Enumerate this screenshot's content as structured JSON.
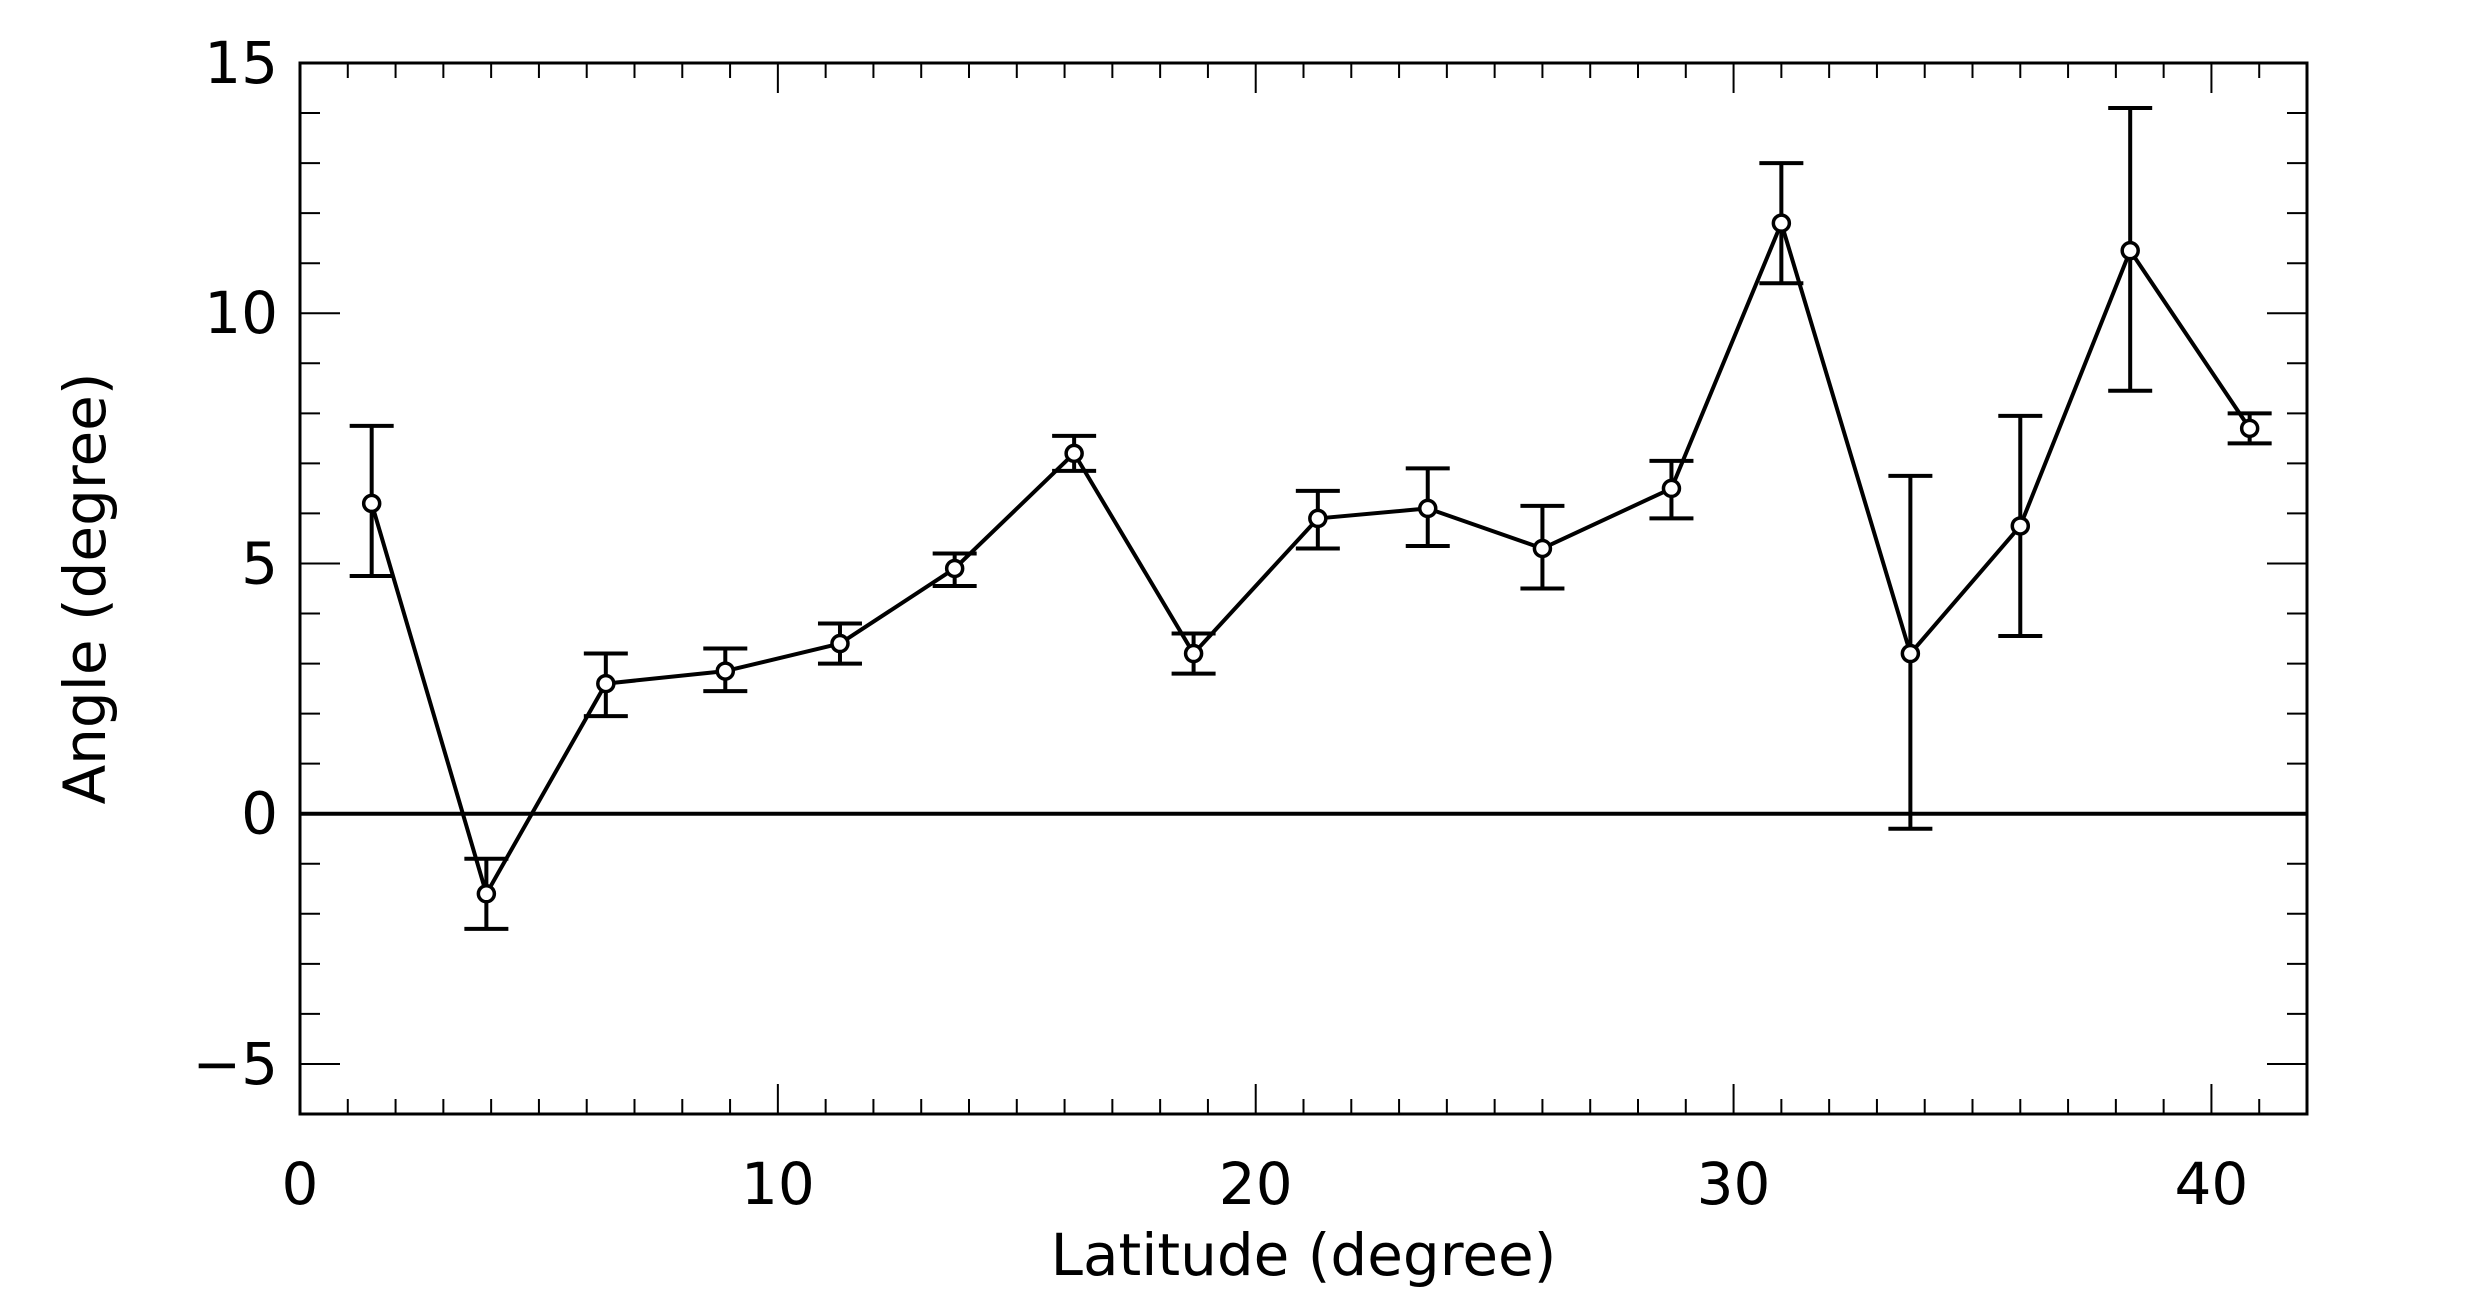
{
  "chart_data": {
    "type": "line",
    "xlabel": "Latitude (degree)",
    "ylabel": "Angle (degree)",
    "xlim": [
      0,
      42
    ],
    "ylim": [
      -6,
      15
    ],
    "x_ticks": [
      0,
      10,
      20,
      30,
      40
    ],
    "x_tick_labels": [
      "0",
      "10",
      "20",
      "30",
      "40"
    ],
    "y_ticks": [
      -5,
      0,
      5,
      10,
      15
    ],
    "y_tick_labels": [
      "−5",
      "0",
      "5",
      "10",
      "15"
    ],
    "x_minor_step": 1,
    "y_minor_step": 1,
    "zero_line": 0,
    "grid": false,
    "series": [
      {
        "marker": "open-circle",
        "color": "#000000",
        "x": [
          1.5,
          3.9,
          6.4,
          8.9,
          11.3,
          13.7,
          16.2,
          18.7,
          21.3,
          23.6,
          26.0,
          28.7,
          31.0,
          33.7,
          36.0,
          38.3,
          40.8
        ],
        "y": [
          6.2,
          -1.6,
          2.6,
          2.85,
          3.4,
          4.9,
          7.2,
          3.2,
          5.9,
          6.1,
          5.3,
          6.5,
          11.8,
          3.2,
          5.75,
          11.25,
          7.7
        ],
        "yerr_low": [
          4.75,
          -2.3,
          1.95,
          2.45,
          3.0,
          4.55,
          6.85,
          2.8,
          5.3,
          5.35,
          4.5,
          5.9,
          10.6,
          -0.3,
          3.55,
          8.45,
          7.4
        ],
        "yerr_high": [
          7.75,
          -0.9,
          3.2,
          3.3,
          3.8,
          5.2,
          7.55,
          3.6,
          6.45,
          6.9,
          6.15,
          7.05,
          13.0,
          6.75,
          7.95,
          14.1,
          8.0
        ]
      }
    ]
  }
}
